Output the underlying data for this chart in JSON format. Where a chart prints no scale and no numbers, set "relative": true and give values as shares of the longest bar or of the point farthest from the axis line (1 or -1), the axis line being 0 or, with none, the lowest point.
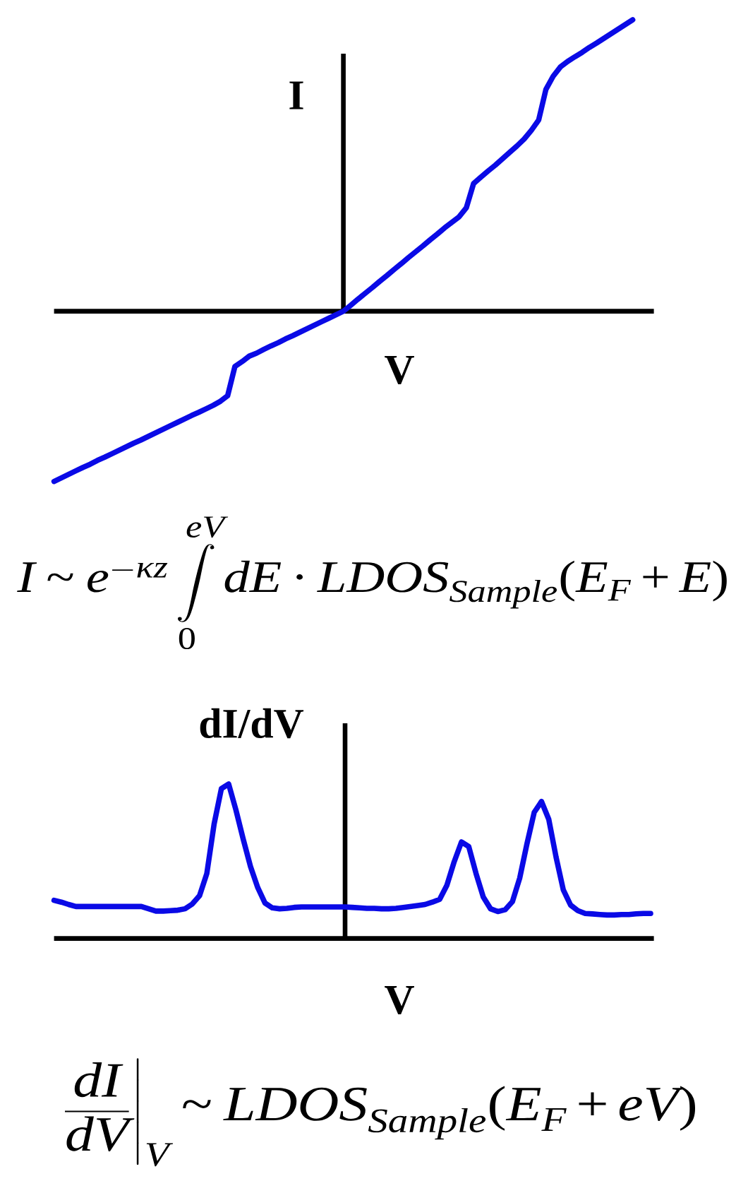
{
  "chart_data": [
    {
      "type": "line",
      "xlabel": "V",
      "ylabel": "I",
      "relative": true,
      "categories": [
        null,
        null,
        null,
        null,
        null,
        null,
        null,
        null,
        null,
        null,
        null,
        null,
        null,
        null,
        null,
        null,
        null,
        null,
        null,
        null,
        null,
        null,
        null,
        null,
        null,
        null,
        null,
        null,
        null,
        null,
        null,
        null,
        null,
        null,
        null,
        null,
        null,
        null,
        null,
        null,
        null,
        null,
        null,
        null,
        null,
        null,
        null,
        null,
        null,
        null,
        null,
        null,
        null,
        null,
        null,
        null,
        null,
        null,
        null,
        null,
        null,
        null,
        null,
        null,
        null,
        null,
        null,
        null,
        null,
        null,
        null,
        null,
        null,
        null,
        null,
        null,
        null,
        null,
        null,
        null,
        null
      ],
      "series": [
        {
          "color": "#0a0ae6",
          "values": [
            -0.584,
            -0.572,
            -0.56,
            -0.548,
            -0.536,
            -0.525,
            -0.512,
            -0.501,
            -0.489,
            -0.477,
            -0.465,
            -0.453,
            -0.442,
            -0.43,
            -0.418,
            -0.406,
            -0.394,
            -0.382,
            -0.37,
            -0.358,
            -0.347,
            -0.335,
            -0.323,
            -0.309,
            -0.29,
            -0.19,
            -0.173,
            -0.154,
            -0.144,
            -0.131,
            -0.119,
            -0.108,
            -0.095,
            -0.084,
            -0.072,
            -0.06,
            -0.048,
            -0.036,
            -0.024,
            -0.012,
            0,
            0.02,
            0.041,
            0.061,
            0.081,
            0.102,
            0.122,
            0.143,
            0.163,
            0.184,
            0.204,
            0.224,
            0.245,
            0.265,
            0.286,
            0.305,
            0.324,
            0.355,
            0.438,
            0.46,
            0.481,
            0.501,
            0.523,
            0.545,
            0.567,
            0.591,
            0.621,
            0.656,
            0.761,
            0.806,
            0.838,
            0.857,
            0.873,
            0.888,
            0.905,
            0.92,
            0.936,
            0.952,
            0.968,
            0.984,
            1.0
          ]
        }
      ],
      "annotations": [
        "I\\sim e^{-\\kappa z}\\int\\limits_{0}^{eV}dE\\cdot LDOS_{Sample}(E_{F}+E)"
      ]
    },
    {
      "type": "line",
      "xlabel": "V",
      "ylabel": "dI/dV",
      "relative": true,
      "categories": [
        null,
        null,
        null,
        null,
        null,
        null,
        null,
        null,
        null,
        null,
        null,
        null,
        null,
        null,
        null,
        null,
        null,
        null,
        null,
        null,
        null,
        null,
        null,
        null,
        null,
        null,
        null,
        null,
        null,
        null,
        null,
        null,
        null,
        null,
        null,
        null,
        null,
        null,
        null,
        null,
        null,
        null,
        null,
        null,
        null,
        null,
        null,
        null,
        null,
        null,
        null,
        null,
        null,
        null,
        null,
        null,
        null,
        null,
        null,
        null,
        null,
        null,
        null,
        null,
        null,
        null,
        null,
        null,
        null,
        null,
        null,
        null,
        null,
        null,
        null,
        null,
        null,
        null,
        null,
        null,
        null,
        null,
        null
      ],
      "series": [
        {
          "color": "#0a0ae6",
          "values": [
            0.247,
            0.235,
            0.22,
            0.207,
            0.207,
            0.207,
            0.207,
            0.207,
            0.207,
            0.207,
            0.207,
            0.207,
            0.207,
            0.192,
            0.177,
            0.177,
            0.18,
            0.183,
            0.192,
            0.223,
            0.277,
            0.421,
            0.741,
            0.97,
            1.0,
            0.832,
            0.643,
            0.466,
            0.329,
            0.229,
            0.198,
            0.192,
            0.195,
            0.201,
            0.204,
            0.204,
            0.204,
            0.204,
            0.204,
            0.204,
            0.204,
            0.201,
            0.198,
            0.195,
            0.195,
            0.192,
            0.192,
            0.195,
            0.201,
            0.207,
            0.213,
            0.22,
            0.235,
            0.253,
            0.345,
            0.497,
            0.625,
            0.595,
            0.421,
            0.268,
            0.192,
            0.174,
            0.186,
            0.238,
            0.39,
            0.613,
            0.817,
            0.887,
            0.771,
            0.527,
            0.314,
            0.216,
            0.18,
            0.162,
            0.159,
            0.155,
            0.152,
            0.152,
            0.155,
            0.155,
            0.159,
            0.162,
            0.162
          ]
        }
      ],
      "annotations": [
        "\\left.\\frac{dI}{dV}\\right|_{V}\\sim LDOS_{Sample}(E_{F}+eV)"
      ]
    }
  ]
}
